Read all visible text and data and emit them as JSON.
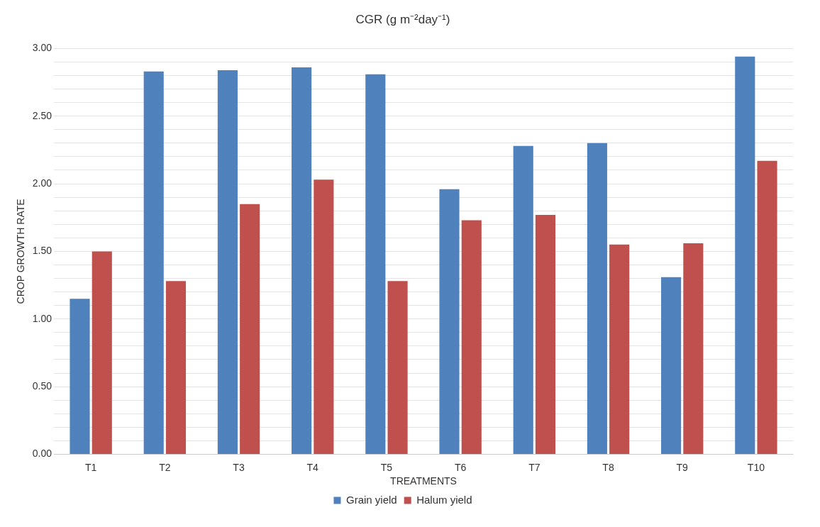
{
  "chart_data": {
    "type": "bar",
    "title": "CGR (g m⁻²day⁻¹)",
    "xlabel": "TREATMENTS",
    "ylabel": "CROP GROWTH RATE",
    "categories": [
      "T1",
      "T2",
      "T3",
      "T4",
      "T5",
      "T6",
      "T7",
      "T8",
      "T9",
      "T10"
    ],
    "series": [
      {
        "name": "Grain yield",
        "color": "#4f81bd",
        "values": [
          1.15,
          2.83,
          2.84,
          2.86,
          2.81,
          1.96,
          2.28,
          2.3,
          1.31,
          2.94
        ]
      },
      {
        "name": "Halum yield",
        "color": "#c0504d",
        "values": [
          1.5,
          1.28,
          1.85,
          2.03,
          1.28,
          1.73,
          1.77,
          1.55,
          1.56,
          2.17
        ]
      }
    ],
    "ylim": [
      0,
      3
    ],
    "yticks": [
      {
        "value": 0,
        "label": "0.00"
      },
      {
        "value": 0.1,
        "label": null
      },
      {
        "value": 0.2,
        "label": null
      },
      {
        "value": 0.3,
        "label": null
      },
      {
        "value": 0.4,
        "label": null
      },
      {
        "value": 0.5,
        "label": "0.50"
      },
      {
        "value": 0.6,
        "label": null
      },
      {
        "value": 0.7,
        "label": null
      },
      {
        "value": 0.8,
        "label": null
      },
      {
        "value": 0.9,
        "label": null
      },
      {
        "value": 1,
        "label": "1.00"
      },
      {
        "value": 1.1,
        "label": null
      },
      {
        "value": 1.2,
        "label": null
      },
      {
        "value": 1.3,
        "label": null
      },
      {
        "value": 1.4,
        "label": null
      },
      {
        "value": 1.5,
        "label": "1.50"
      },
      {
        "value": 1.6,
        "label": null
      },
      {
        "value": 1.7,
        "label": null
      },
      {
        "value": 1.8,
        "label": null
      },
      {
        "value": 1.9,
        "label": null
      },
      {
        "value": 2,
        "label": "2.00"
      },
      {
        "value": 2.1,
        "label": null
      },
      {
        "value": 2.2,
        "label": null
      },
      {
        "value": 2.3,
        "label": null
      },
      {
        "value": 2.4,
        "label": null
      },
      {
        "value": 2.5,
        "label": "2.50"
      },
      {
        "value": 2.6,
        "label": null
      },
      {
        "value": 2.7,
        "label": null
      },
      {
        "value": 2.8,
        "label": null
      },
      {
        "value": 2.9,
        "label": null
      },
      {
        "value": 3,
        "label": "3.00"
      }
    ],
    "grid": "y",
    "legend": "bottom"
  }
}
